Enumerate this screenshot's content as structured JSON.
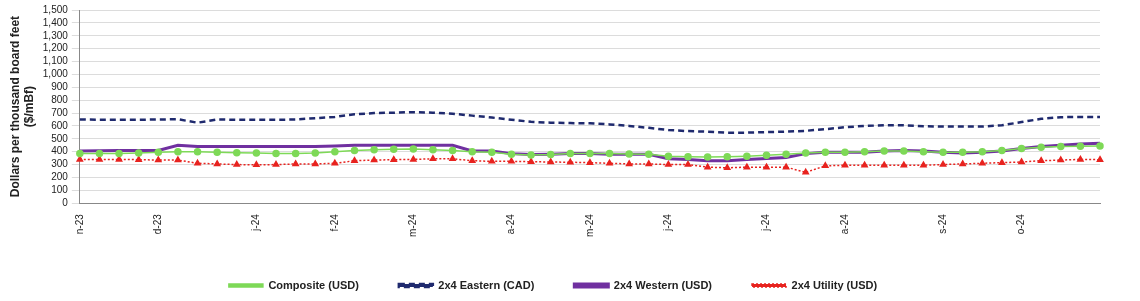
{
  "chart_data": {
    "type": "line",
    "y_label": [
      "Dollars per thousand board feet",
      "($/mBf)"
    ],
    "categories": [
      "n-23",
      null,
      null,
      null,
      "d-23",
      null,
      null,
      null,
      null,
      "j-24",
      null,
      null,
      null,
      "f-24",
      null,
      null,
      null,
      "m-24",
      null,
      null,
      null,
      null,
      "a-24",
      null,
      null,
      null,
      "m-24",
      null,
      null,
      null,
      "j-24",
      null,
      null,
      null,
      null,
      "j-24",
      null,
      null,
      null,
      "a-24",
      null,
      null,
      null,
      null,
      "s-24",
      null,
      null,
      null,
      "o-24",
      null,
      null,
      null,
      null
    ],
    "series": [
      {
        "name": "Composite (USD)",
        "color": "#7ed957",
        "marker": "circle",
        "line_style": "solid",
        "values": [
          385,
          385,
          385,
          390,
          395,
          400,
          400,
          395,
          392,
          390,
          385,
          385,
          390,
          400,
          410,
          415,
          418,
          420,
          415,
          410,
          400,
          395,
          380,
          375,
          378,
          385,
          385,
          385,
          382,
          380,
          365,
          360,
          358,
          360,
          365,
          372,
          380,
          390,
          395,
          395,
          400,
          405,
          405,
          400,
          395,
          395,
          400,
          410,
          425,
          435,
          440,
          443,
          445
        ]
      },
      {
        "name": "2x4 Eastern (CAD)",
        "color": "#1f2a6e",
        "marker": "none",
        "line_style": "dashed",
        "values": [
          650,
          648,
          648,
          648,
          650,
          652,
          625,
          650,
          648,
          648,
          648,
          650,
          660,
          670,
          690,
          700,
          703,
          707,
          703,
          695,
          680,
          665,
          648,
          632,
          625,
          622,
          620,
          612,
          600,
          585,
          568,
          560,
          555,
          548,
          548,
          552,
          556,
          562,
          575,
          590,
          600,
          605,
          605,
          598,
          595,
          595,
          595,
          605,
          630,
          655,
          668,
          670,
          670
        ]
      },
      {
        "name": "2x4 Western (USD)",
        "color": "#7030a0",
        "marker": "none",
        "line_style": "solid",
        "values": [
          405,
          408,
          410,
          410,
          410,
          450,
          440,
          440,
          440,
          440,
          440,
          440,
          440,
          445,
          450,
          450,
          450,
          450,
          450,
          450,
          405,
          405,
          385,
          378,
          380,
          385,
          385,
          380,
          380,
          380,
          345,
          340,
          330,
          330,
          340,
          348,
          355,
          385,
          395,
          395,
          395,
          405,
          410,
          405,
          395,
          390,
          395,
          405,
          425,
          440,
          450,
          460,
          465
        ]
      },
      {
        "name": "2x4 Utility (USD)",
        "color": "#e8231f",
        "marker": "triangle",
        "line_style": "dotted",
        "values": [
          340,
          340,
          340,
          338,
          335,
          335,
          310,
          305,
          300,
          298,
          300,
          305,
          305,
          310,
          330,
          335,
          338,
          340,
          345,
          345,
          330,
          325,
          325,
          322,
          320,
          318,
          315,
          310,
          305,
          305,
          300,
          300,
          280,
          275,
          280,
          280,
          280,
          240,
          290,
          295,
          295,
          295,
          295,
          295,
          300,
          305,
          310,
          315,
          320,
          330,
          335,
          340,
          338
        ]
      }
    ],
    "ylim": [
      0,
      1500
    ],
    "yticks": [
      0,
      100,
      200,
      300,
      400,
      500,
      600,
      700,
      800,
      900,
      1000,
      1100,
      1200,
      1300,
      1400,
      1500
    ],
    "grid": "y",
    "legend": "bottom"
  }
}
